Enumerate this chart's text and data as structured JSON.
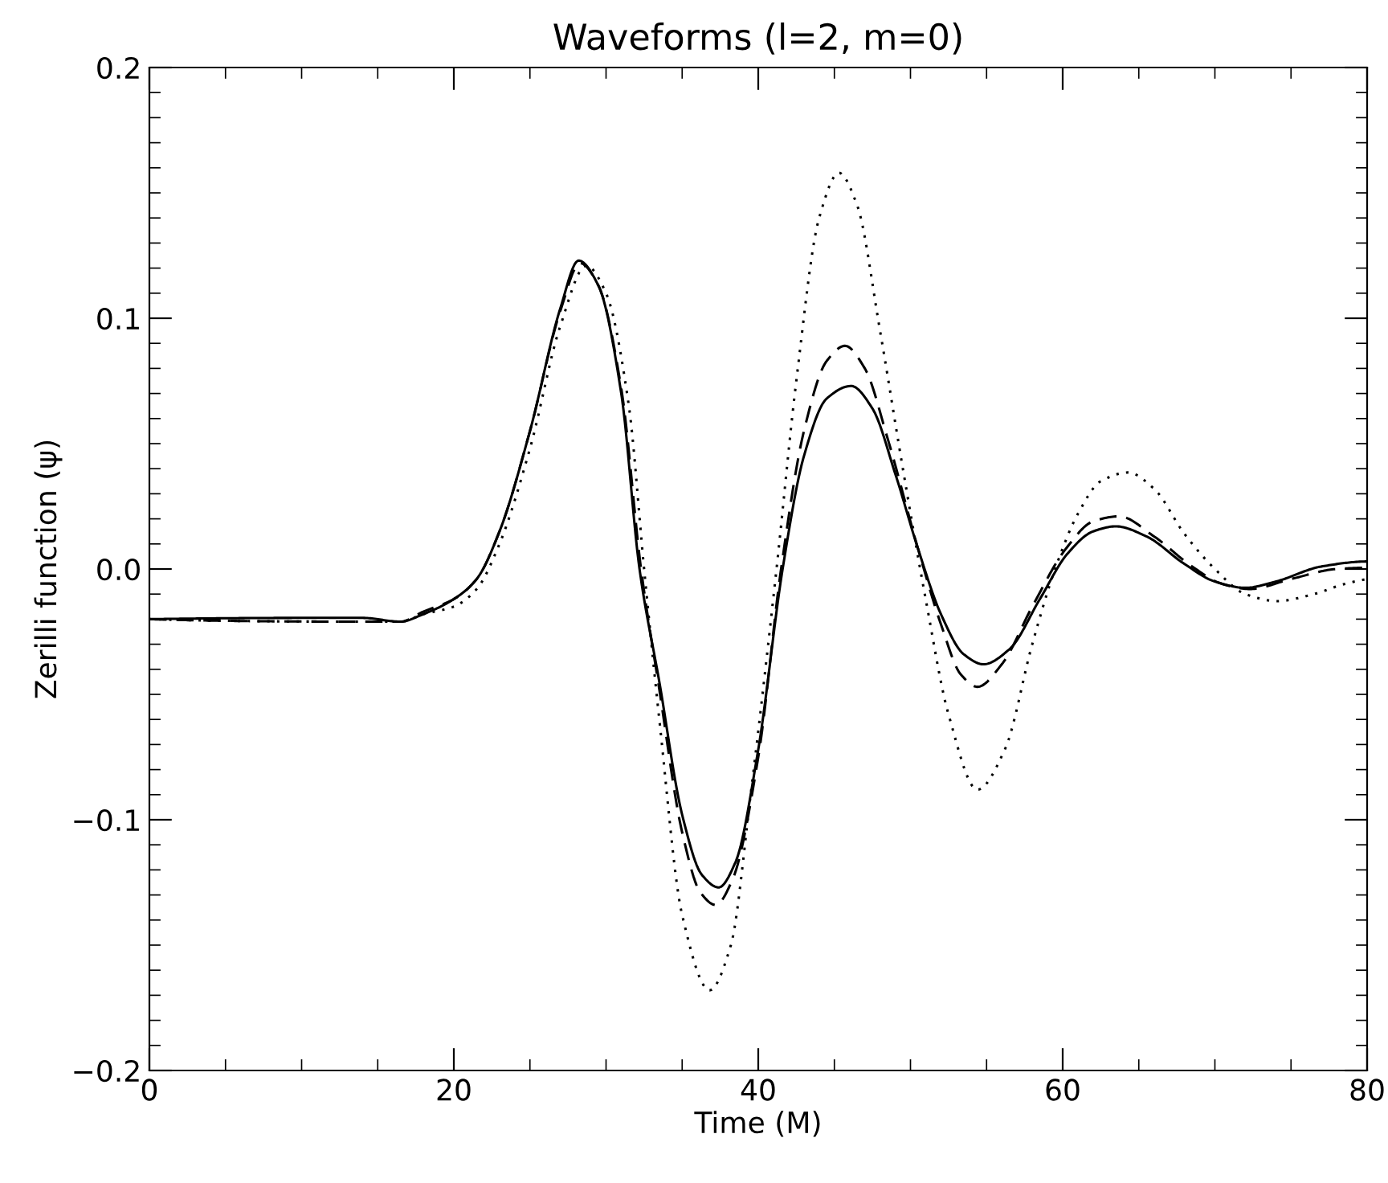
{
  "chart_data": {
    "type": "line",
    "title": "Waveforms (l=2, m=0)",
    "xlabel": "Time (M)",
    "ylabel": "Zerilli function (ψ)",
    "xlim": [
      0,
      80
    ],
    "xticks": [
      0,
      20,
      40,
      60,
      80
    ],
    "ylim": [
      -0.2,
      0.2
    ],
    "yticks": [
      {
        "value": -0.2,
        "label": "−0.2"
      },
      {
        "value": -0.1,
        "label": "−0.1"
      },
      {
        "value": 0.0,
        "label": "0.0"
      },
      {
        "value": 0.1,
        "label": "0.1"
      },
      {
        "value": 0.2,
        "label": "0.2"
      }
    ],
    "grid": false,
    "marker": "none",
    "series": [
      {
        "color": "#000000",
        "line_style": "solid",
        "x": [
          0,
          10,
          14,
          16.5,
          18,
          20,
          21.5,
          23,
          25,
          27,
          28.2,
          29.5,
          31,
          32.2,
          33.5,
          35,
          36.3,
          37.4,
          38.5,
          40,
          41.6,
          43,
          44.5,
          46.1,
          47.5,
          49,
          50.5,
          52,
          53.5,
          54.8,
          56.5,
          58.5,
          60.3,
          62,
          63.5,
          65.5,
          68,
          70,
          72,
          74,
          77,
          80
        ],
        "values": [
          -0.02,
          -0.0195,
          -0.0195,
          -0.021,
          -0.018,
          -0.012,
          -0.004,
          0.015,
          0.055,
          0.104,
          0.123,
          0.113,
          0.07,
          0.0,
          -0.045,
          -0.098,
          -0.122,
          -0.127,
          -0.117,
          -0.072,
          0.0,
          0.045,
          0.068,
          0.073,
          0.064,
          0.038,
          0.008,
          -0.018,
          -0.034,
          -0.038,
          -0.032,
          -0.012,
          0.006,
          0.015,
          0.017,
          0.013,
          0.002,
          -0.005,
          -0.0075,
          -0.005,
          0.001,
          0.003
        ]
      },
      {
        "color": "#000000",
        "line_style": "dashed",
        "x": [
          0,
          16.5,
          18,
          20,
          21.5,
          23,
          25,
          27,
          28.3,
          29.5,
          31,
          32.3,
          33.5,
          35,
          36.2,
          37.2,
          38.3,
          40,
          41.5,
          43,
          44.5,
          45.7,
          47,
          48.5,
          50.5,
          52,
          53.3,
          54.4,
          56,
          58,
          60.2,
          62,
          63.7,
          66,
          68.5,
          70.5,
          72.3,
          75,
          78,
          80
        ],
        "values": [
          -0.02,
          -0.021,
          -0.017,
          -0.012,
          -0.004,
          0.015,
          0.055,
          0.103,
          0.122,
          0.113,
          0.072,
          0.0,
          -0.048,
          -0.105,
          -0.129,
          -0.134,
          -0.124,
          -0.075,
          0.0,
          0.055,
          0.083,
          0.089,
          0.08,
          0.052,
          0.008,
          -0.022,
          -0.042,
          -0.047,
          -0.038,
          -0.015,
          0.008,
          0.019,
          0.021,
          0.013,
          0.001,
          -0.006,
          -0.008,
          -0.004,
          0.0,
          0.0005
        ]
      },
      {
        "color": "#000000",
        "line_style": "dotted",
        "x": [
          0,
          16.5,
          18,
          20,
          21.5,
          23,
          25,
          27,
          28.7,
          30,
          31.5,
          32.5,
          33.5,
          35,
          36.8,
          38.2,
          39.5,
          41.2,
          42.5,
          44,
          45.3,
          46.5,
          48,
          49.5,
          51,
          52.5,
          54.4,
          56.2,
          58,
          59.5,
          61,
          62.5,
          64.3,
          66,
          68,
          70,
          72,
          74.1,
          76.5,
          78.5,
          80
        ],
        "values": [
          -0.02,
          -0.021,
          -0.018,
          -0.015,
          -0.008,
          0.01,
          0.048,
          0.097,
          0.121,
          0.11,
          0.065,
          0.0,
          -0.06,
          -0.138,
          -0.168,
          -0.15,
          -0.09,
          0.0,
          0.075,
          0.14,
          0.158,
          0.145,
          0.095,
          0.04,
          -0.012,
          -0.058,
          -0.088,
          -0.072,
          -0.03,
          0.0,
          0.022,
          0.035,
          0.0385,
          0.032,
          0.014,
          0.0,
          -0.01,
          -0.0128,
          -0.01,
          -0.006,
          -0.004
        ]
      }
    ]
  }
}
